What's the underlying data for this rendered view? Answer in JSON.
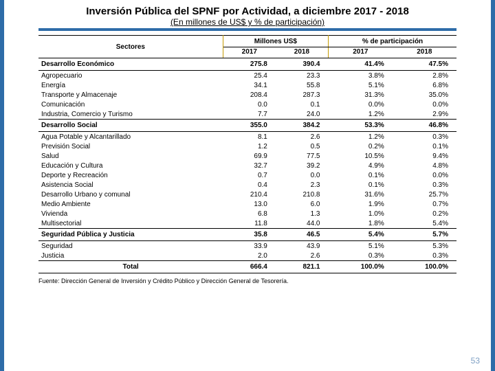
{
  "title": "Inversión Pública del SPNF por Actividad, a diciembre 2017 - 2018",
  "subtitle": "(En millones de US$ y % de participación)",
  "accent_color": "#2e6ca8",
  "table": {
    "headers": {
      "sectores": "Sectores",
      "millones": "Millones US$",
      "pct": "% de participación",
      "y2017": "2017",
      "y2018": "2018"
    },
    "sections": [
      {
        "label": "Desarrollo Económico",
        "m2017": "275.8",
        "m2018": "390.4",
        "p2017": "41.4%",
        "p2018": "47.5%",
        "rows": [
          {
            "label": "Agropecuario",
            "m2017": "25.4",
            "m2018": "23.3",
            "p2017": "3.8%",
            "p2018": "2.8%"
          },
          {
            "label": "Energía",
            "m2017": "34.1",
            "m2018": "55.8",
            "p2017": "5.1%",
            "p2018": "6.8%"
          },
          {
            "label": "Transporte y Almacenaje",
            "m2017": "208.4",
            "m2018": "287.3",
            "p2017": "31.3%",
            "p2018": "35.0%"
          },
          {
            "label": "Comunicación",
            "m2017": "0.0",
            "m2018": "0.1",
            "p2017": "0.0%",
            "p2018": "0.0%"
          },
          {
            "label": "Industria, Comercio y Turismo",
            "m2017": "7.7",
            "m2018": "24.0",
            "p2017": "1.2%",
            "p2018": "2.9%"
          }
        ]
      },
      {
        "label": "Desarrollo Social",
        "m2017": "355.0",
        "m2018": "384.2",
        "p2017": "53.3%",
        "p2018": "46.8%",
        "rows": [
          {
            "label": "Agua Potable y Alcantarillado",
            "m2017": "8.1",
            "m2018": "2.6",
            "p2017": "1.2%",
            "p2018": "0.3%"
          },
          {
            "label": "Previsión Social",
            "m2017": "1.2",
            "m2018": "0.5",
            "p2017": "0.2%",
            "p2018": "0.1%"
          },
          {
            "label": "Salud",
            "m2017": "69.9",
            "m2018": "77.5",
            "p2017": "10.5%",
            "p2018": "9.4%"
          },
          {
            "label": "Educación y Cultura",
            "m2017": "32.7",
            "m2018": "39.2",
            "p2017": "4.9%",
            "p2018": "4.8%"
          },
          {
            "label": "Deporte y Recreación",
            "m2017": "0.7",
            "m2018": "0.0",
            "p2017": "0.1%",
            "p2018": "0.0%"
          },
          {
            "label": "Asistencia Social",
            "m2017": "0.4",
            "m2018": "2.3",
            "p2017": "0.1%",
            "p2018": "0.3%"
          },
          {
            "label": "Desarrollo Urbano y comunal",
            "m2017": "210.4",
            "m2018": "210.8",
            "p2017": "31.6%",
            "p2018": "25.7%"
          },
          {
            "label": "Medio Ambiente",
            "m2017": "13.0",
            "m2018": "6.0",
            "p2017": "1.9%",
            "p2018": "0.7%"
          },
          {
            "label": "Vivienda",
            "m2017": "6.8",
            "m2018": "1.3",
            "p2017": "1.0%",
            "p2018": "0.2%"
          },
          {
            "label": "Multisectorial",
            "m2017": "11.8",
            "m2018": "44.0",
            "p2017": "1.8%",
            "p2018": "5.4%"
          }
        ]
      },
      {
        "label": "Seguridad Pública y Justicia",
        "m2017": "35.8",
        "m2018": "46.5",
        "p2017": "5.4%",
        "p2018": "5.7%",
        "rows": [
          {
            "label": "Seguridad",
            "m2017": "33.9",
            "m2018": "43.9",
            "p2017": "5.1%",
            "p2018": "5.3%"
          },
          {
            "label": "Justicia",
            "m2017": "2.0",
            "m2018": "2.6",
            "p2017": "0.3%",
            "p2018": "0.3%"
          }
        ]
      }
    ],
    "total": {
      "label": "Total",
      "m2017": "666.4",
      "m2018": "821.1",
      "p2017": "100.0%",
      "p2018": "100.0%"
    }
  },
  "source": "Fuente: Dirección General de Inversión y Crédito Público y Dirección General de Tesorería.",
  "page_number": "53"
}
